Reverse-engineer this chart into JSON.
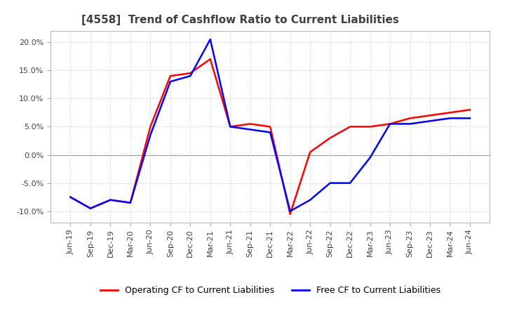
{
  "title": "[4558]  Trend of Cashflow Ratio to Current Liabilities",
  "x_labels": [
    "Jun-19",
    "Sep-19",
    "Dec-19",
    "Mar-20",
    "Jun-20",
    "Sep-20",
    "Dec-20",
    "Mar-21",
    "Jun-21",
    "Sep-21",
    "Dec-21",
    "Mar-22",
    "Jun-22",
    "Sep-22",
    "Dec-22",
    "Mar-23",
    "Jun-23",
    "Sep-23",
    "Dec-23",
    "Mar-24",
    "Jun-24"
  ],
  "operating_cf": [
    -7.5,
    -9.5,
    -8.0,
    -8.5,
    5.0,
    14.0,
    14.5,
    17.0,
    5.0,
    5.5,
    5.0,
    -10.5,
    0.5,
    3.0,
    5.0,
    5.0,
    5.5,
    6.5,
    7.0,
    7.5,
    8.0
  ],
  "free_cf": [
    -7.5,
    -9.5,
    -8.0,
    -8.5,
    3.5,
    13.0,
    14.0,
    20.5,
    5.0,
    4.5,
    4.0,
    -10.0,
    -8.0,
    -5.0,
    -5.0,
    -0.5,
    5.5,
    5.5,
    6.0,
    6.5,
    6.5
  ],
  "operating_color": "#ff0000",
  "free_color": "#0000ff",
  "ylim": [
    -12,
    22
  ],
  "yticks": [
    -10.0,
    -5.0,
    0.0,
    5.0,
    10.0,
    15.0,
    20.0
  ],
  "background_color": "#ffffff",
  "grid_color": "#c8c8c8",
  "grid_style": "dotted",
  "title_fontsize": 11,
  "title_color": "#404040",
  "tick_fontsize": 8,
  "legend_labels": [
    "Operating CF to Current Liabilities",
    "Free CF to Current Liabilities"
  ],
  "legend_fontsize": 9,
  "line_width": 1.8,
  "zero_line_color": "#808080"
}
